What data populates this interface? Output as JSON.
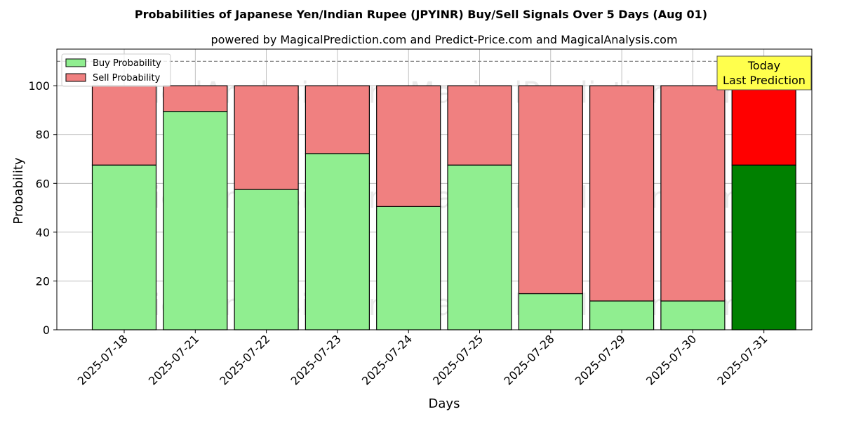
{
  "chart_data": {
    "type": "bar",
    "stacked": true,
    "title": "Probabilities of Japanese Yen/Indian Rupee (JPYINR) Buy/Sell Signals Over 5 Days (Aug 01)",
    "subtitle": "powered by MagicalPrediction.com and Predict-Price.com and MagicalAnalysis.com",
    "xlabel": "Days",
    "ylabel": "Probability",
    "ylim": [
      0,
      115
    ],
    "yticks": [
      0,
      20,
      40,
      60,
      80,
      100
    ],
    "reference_line": 110,
    "grid": true,
    "legend_position": "top-left",
    "categories": [
      "2025-07-18",
      "2025-07-21",
      "2025-07-22",
      "2025-07-23",
      "2025-07-24",
      "2025-07-25",
      "2025-07-28",
      "2025-07-29",
      "2025-07-30",
      "2025-07-31"
    ],
    "series": [
      {
        "name": "Buy Probability",
        "color": "#90ee90",
        "highlight_color": "#008000",
        "values": [
          67.5,
          89.5,
          57.5,
          72.2,
          50.5,
          67.5,
          14.8,
          11.8,
          11.8,
          67.5
        ]
      },
      {
        "name": "Sell Probability",
        "color": "#f08080",
        "highlight_color": "#ff0000",
        "values": [
          32.5,
          10.5,
          42.5,
          27.8,
          49.5,
          32.5,
          85.2,
          88.2,
          88.2,
          32.5
        ]
      }
    ],
    "highlight_index": 9,
    "annotation": {
      "line1": "Today",
      "line2": "Last Prediction",
      "background": "#ffff4d"
    },
    "watermarks": [
      "MagicalAnalysis.com",
      "MagicalPrediction.com"
    ]
  }
}
